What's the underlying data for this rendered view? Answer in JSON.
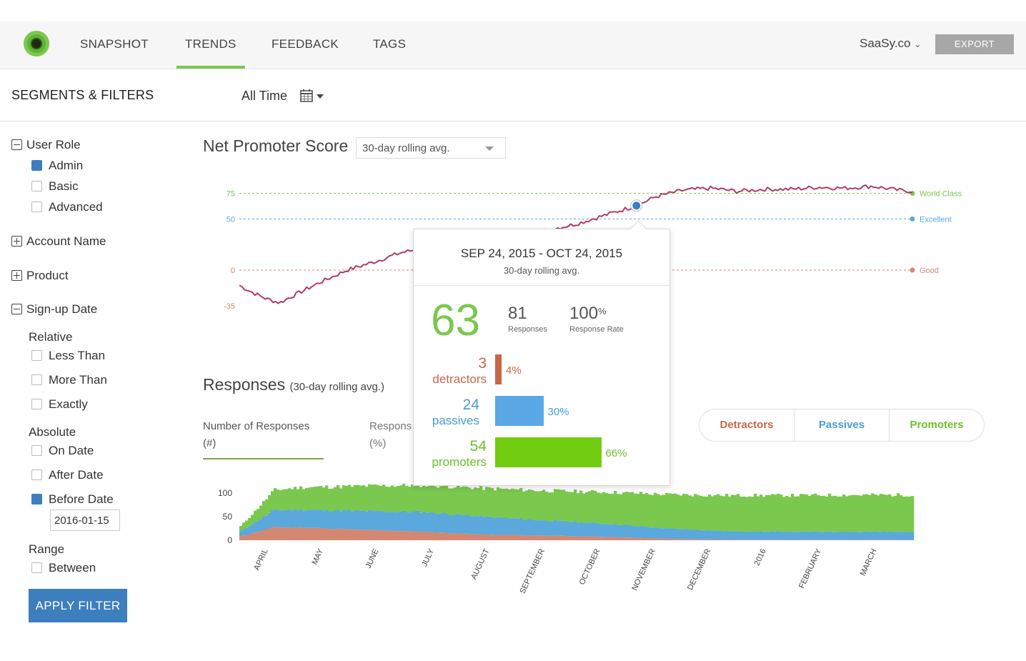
{
  "nav": {
    "items": [
      "SNAPSHOT",
      "TRENDS",
      "FEEDBACK",
      "TAGS"
    ],
    "active": "TRENDS",
    "account": "SaaSy.co",
    "export_label": "EXPORT"
  },
  "toolbar": {
    "segments_title": "SEGMENTS & FILTERS",
    "time_range": "All Time"
  },
  "sidebar": {
    "user_role": {
      "label": "User Role",
      "options": [
        {
          "label": "Admin",
          "checked": true
        },
        {
          "label": "Basic",
          "checked": false
        },
        {
          "label": "Advanced",
          "checked": false
        }
      ]
    },
    "account_name": "Account Name",
    "product": "Product",
    "signup_date": {
      "label": "Sign-up Date",
      "relative": {
        "label": "Relative",
        "options": [
          "Less Than",
          "More Than",
          "Exactly"
        ]
      },
      "absolute": {
        "label": "Absolute",
        "options": [
          "On Date",
          "After Date",
          "Before Date"
        ],
        "checked": "Before Date"
      },
      "date_value": "2016-01-15",
      "range": {
        "label": "Range",
        "options": [
          "Between"
        ]
      }
    },
    "apply_label": "APPLY FILTER"
  },
  "nps": {
    "title": "Net Promoter Score",
    "dropdown": "30-day rolling avg.",
    "colors": {
      "line": "#b03c66",
      "world": "#7ac84d",
      "excellent": "#5aa8dc",
      "good": "#d48872",
      "marker": "#3d7ebe"
    }
  },
  "popup": {
    "range": "SEP 24, 2015 - OCT 24, 2015",
    "sub": "30-day rolling avg.",
    "score": "63",
    "responses": "81",
    "responses_label": "Responses",
    "rate": "100",
    "rate_unit": "%",
    "rate_label": "Response Rate",
    "detractors": {
      "count": "3",
      "label": "detractors",
      "pct": "4%",
      "value": 4
    },
    "passives": {
      "count": "24",
      "label": "passives",
      "pct": "30%",
      "value": 30
    },
    "promoters": {
      "count": "54",
      "label": "promoters",
      "pct": "66%",
      "value": 66
    }
  },
  "responses": {
    "title": "Responses",
    "subtitle": "(30-day rolling avg.)",
    "tab1_line1": "Number of Responses",
    "tab1_line2": "(#)",
    "tab2_line1": "Responses",
    "tab2_line2": "(%)",
    "segments": [
      "Detractors",
      "Passives",
      "Promoters"
    ],
    "colors": {
      "det": "#d48872",
      "pas": "#5aa8dc",
      "pro": "#7ac84d"
    }
  },
  "chart_data": [
    {
      "type": "line",
      "title": "Net Promoter Score",
      "ylim": [
        -35,
        80
      ],
      "y_ticks": [
        75,
        50,
        0,
        -35
      ],
      "thresholds": [
        {
          "name": "World Class",
          "value": 75,
          "color": "#7ac84d"
        },
        {
          "name": "Excellent",
          "value": 50,
          "color": "#5aa8dc"
        },
        {
          "name": "Good",
          "value": 0,
          "color": "#d48872"
        }
      ],
      "x": [
        0.0,
        0.02,
        0.04,
        0.06,
        0.08,
        0.12,
        0.16,
        0.2,
        0.24,
        0.27,
        0.34,
        0.4,
        0.45,
        0.5,
        0.55,
        0.59,
        0.62,
        0.66,
        0.7,
        0.74,
        0.78,
        0.82,
        0.86,
        0.9,
        0.94,
        0.98,
        1.0
      ],
      "series": [
        {
          "values": [
            -15,
            -22,
            -28,
            -32,
            -25,
            -12,
            0,
            8,
            17,
            21,
            25,
            32,
            38,
            45,
            55,
            63,
            72,
            78,
            80,
            77,
            79,
            79,
            81,
            80,
            82,
            78,
            77
          ]
        }
      ],
      "highlight": {
        "x": 0.59,
        "y": 63
      }
    },
    {
      "type": "bar",
      "title": "Responses",
      "stacked": true,
      "ylim": [
        0,
        120
      ],
      "y_ticks": [
        100,
        50,
        0
      ],
      "categories": [
        "APRIL",
        "MAY",
        "JUNE",
        "JULY",
        "AUGUST",
        "SEPTEMBER",
        "OCTOBER",
        "NOVEMBER",
        "DECEMBER",
        "2016",
        "FEBRUARY",
        "MARCH"
      ],
      "series": [
        {
          "name": "Detractors",
          "values": [
            28,
            27,
            22,
            18,
            12,
            10,
            7,
            3,
            1,
            1,
            1,
            1
          ]
        },
        {
          "name": "Passives",
          "values": [
            35,
            38,
            40,
            42,
            38,
            32,
            28,
            22,
            18,
            17,
            17,
            17
          ]
        },
        {
          "name": "Promoters",
          "values": [
            37,
            47,
            53,
            57,
            60,
            63,
            67,
            72,
            76,
            77,
            78,
            78
          ]
        }
      ]
    }
  ]
}
